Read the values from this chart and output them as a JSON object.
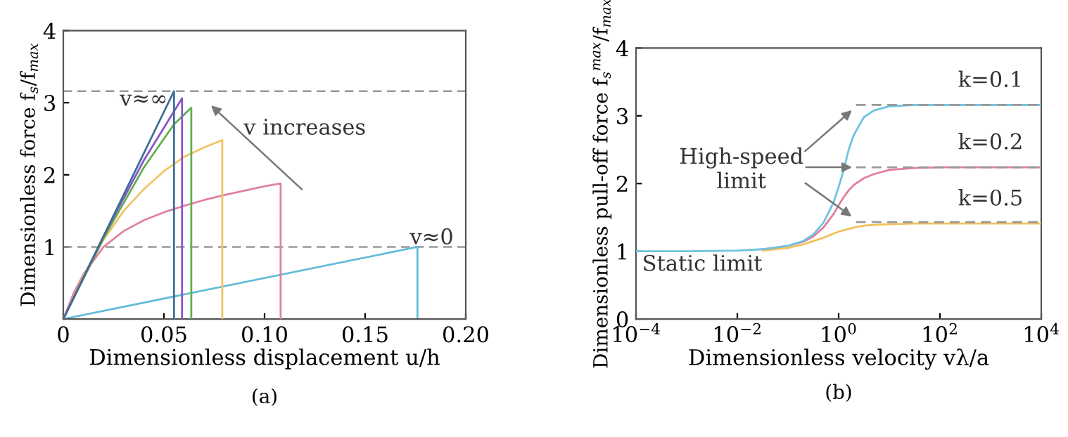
{
  "chart_data": [
    {
      "type": "line",
      "title": "(a)",
      "xlabel": "Dimensionless displacement u/h",
      "ylabel": "Dimensionless force f$_{s}$/f$_{max}$",
      "xlim": [
        0,
        0.2
      ],
      "ylim": [
        0,
        4
      ],
      "xticks": [
        {
          "value": 0,
          "label": "0"
        },
        0.05,
        {
          "value": 0.1,
          "label": "0.10"
        },
        0.15,
        {
          "value": 0.2,
          "label": "0.20"
        }
      ],
      "yticks": [
        1,
        2,
        3,
        4
      ],
      "grid": false,
      "legend": false,
      "line_style": "solid",
      "series": [
        {
          "color": "#3f6c98",
          "x": [
            0,
            0.055,
            0.055
          ],
          "values": [
            0,
            3.16,
            0
          ]
        },
        {
          "color": "#8a55c8",
          "x": [
            0,
            0.02,
            0.04,
            0.059,
            0.059
          ],
          "values": [
            0,
            1.15,
            2.2,
            3.06,
            0
          ]
        },
        {
          "color": "#5fb04c",
          "x": [
            0,
            0.02,
            0.04,
            0.055,
            0.0636,
            0.0636
          ],
          "values": [
            0,
            1.12,
            2.1,
            2.7,
            2.93,
            0
          ]
        },
        {
          "color": "#f0c463",
          "x": [
            0,
            0.01,
            0.02,
            0.03,
            0.04,
            0.05,
            0.06,
            0.07,
            0.079,
            0.079
          ],
          "values": [
            0,
            0.6,
            1.1,
            1.5,
            1.8,
            2.05,
            2.25,
            2.38,
            2.48,
            0
          ]
        },
        {
          "color": "#e0829f",
          "x": [
            0,
            0.005,
            0.01,
            0.02,
            0.03,
            0.04,
            0.05,
            0.06,
            0.07,
            0.08,
            0.09,
            0.1,
            0.108,
            0.108
          ],
          "values": [
            0,
            0.35,
            0.62,
            1.0,
            1.22,
            1.37,
            1.48,
            1.57,
            1.65,
            1.72,
            1.78,
            1.84,
            1.88,
            0
          ]
        },
        {
          "color": "#63bcd9",
          "x": [
            0,
            0.176,
            0.176
          ],
          "values": [
            0,
            1.0,
            0
          ]
        }
      ],
      "ref_lines": [
        {
          "axis": "y",
          "value": 1,
          "color": "#999999",
          "line_style": "dashed"
        },
        {
          "axis": "y",
          "value": 3.16,
          "color": "#999999",
          "line_style": "dashed"
        }
      ],
      "annotations": [
        "v≈∞",
        "v increases",
        "v≈0"
      ]
    },
    {
      "type": "line",
      "title": "(b)",
      "xlabel": "Dimensionless velocity vλ/a",
      "ylabel": "Dimensionless pull-off force f$_{s}$$^{max}$/f$_{max}$",
      "log": "x",
      "xlim": [
        0.0001,
        10000
      ],
      "ylim": [
        0,
        4
      ],
      "xticks": [
        {
          "value": 0.0001,
          "label": "10$^{−4}$"
        },
        {
          "value": 0.01,
          "label": "10$^{−2}$"
        },
        {
          "value": 1,
          "label": "10$^{0}$"
        },
        {
          "value": 100,
          "label": "10$^{2}$"
        },
        {
          "value": 10000,
          "label": "10$^{4}$"
        }
      ],
      "yticks": [
        0,
        1,
        2,
        3,
        4
      ],
      "grid": false,
      "legend": false,
      "series": [
        {
          "name": "k=0.1",
          "color": "#6ec3e0",
          "x": [
            0.0001,
            0.001,
            0.01,
            0.0316,
            0.1,
            0.2,
            0.316,
            0.5,
            0.794,
            1,
            1.26,
            1.58,
            2,
            3.16,
            5,
            10,
            31.6,
            100,
            1000,
            10000
          ],
          "values": [
            1,
            1,
            1.01,
            1.03,
            1.08,
            1.15,
            1.25,
            1.42,
            1.72,
            1.95,
            2.2,
            2.5,
            2.72,
            2.98,
            3.08,
            3.14,
            3.16,
            3.16,
            3.16,
            3.16
          ]
        },
        {
          "name": "k=0.2",
          "color": "#e27d9a",
          "x": [
            0.0316,
            0.1,
            0.2,
            0.316,
            0.5,
            0.794,
            1,
            1.26,
            1.58,
            2,
            3.16,
            5,
            10,
            31.6,
            100,
            1000,
            10000
          ],
          "values": [
            1.03,
            1.08,
            1.14,
            1.22,
            1.35,
            1.55,
            1.68,
            1.8,
            1.9,
            1.98,
            2.08,
            2.14,
            2.2,
            2.23,
            2.24,
            2.24,
            2.24
          ]
        },
        {
          "name": "k=0.5",
          "color": "#f2c15a",
          "x": [
            0.0316,
            0.1,
            0.2,
            0.316,
            0.5,
            0.794,
            1,
            1.26,
            1.58,
            2,
            3.16,
            5,
            10,
            31.6,
            100,
            1000,
            10000
          ],
          "values": [
            1.01,
            1.05,
            1.1,
            1.15,
            1.2,
            1.26,
            1.29,
            1.31,
            1.33,
            1.35,
            1.38,
            1.39,
            1.4,
            1.41,
            1.41,
            1.41,
            1.41
          ]
        },
        {
          "color": "#999999",
          "line_style": "dashed",
          "x": [
            2.2,
            10000
          ],
          "values": [
            3.16,
            3.16
          ]
        },
        {
          "color": "#999999",
          "line_style": "dashed",
          "x": [
            2.2,
            10000
          ],
          "values": [
            2.24,
            2.24
          ]
        },
        {
          "color": "#999999",
          "line_style": "dashed",
          "x": [
            2.2,
            10000
          ],
          "values": [
            1.43,
            1.43
          ]
        }
      ],
      "annotations": [
        {
          "text": "High-speed\nlimit",
          "x": 2.2,
          "y": 2.24
        },
        "Static limit"
      ]
    }
  ]
}
